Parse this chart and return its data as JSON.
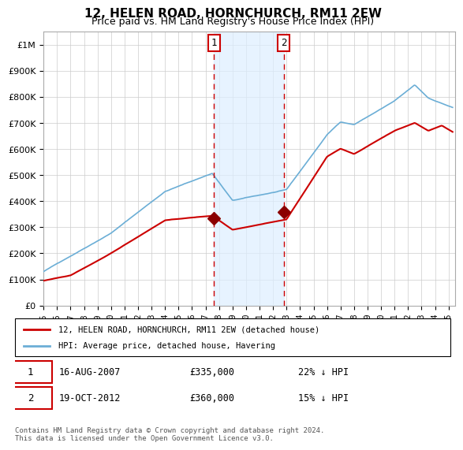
{
  "title": "12, HELEN ROAD, HORNCHURCH, RM11 2EW",
  "subtitle": "Price paid vs. HM Land Registry's House Price Index (HPI)",
  "legend_line1": "12, HELEN ROAD, HORNCHURCH, RM11 2EW (detached house)",
  "legend_line2": "HPI: Average price, detached house, Havering",
  "annotation1_label": "1",
  "annotation1_date": "16-AUG-2007",
  "annotation1_price": "£335,000",
  "annotation1_hpi": "22% ↓ HPI",
  "annotation1_year": 2007.625,
  "annotation1_value": 335000,
  "annotation2_label": "2",
  "annotation2_date": "19-OCT-2012",
  "annotation2_price": "£360,000",
  "annotation2_hpi": "15% ↓ HPI",
  "annotation2_year": 2012.8,
  "annotation2_value": 360000,
  "hpi_color": "#6baed6",
  "price_color": "#cc0000",
  "marker_color": "#8b0000",
  "vline_color": "#cc0000",
  "shade_color": "#ddeeff",
  "footnote": "Contains HM Land Registry data © Crown copyright and database right 2024.\nThis data is licensed under the Open Government Licence v3.0.",
  "ylim": [
    0,
    1050000
  ],
  "yticks": [
    0,
    100000,
    200000,
    300000,
    400000,
    500000,
    600000,
    700000,
    800000,
    900000,
    1000000
  ],
  "ytick_labels": [
    "£0",
    "£100K",
    "£200K",
    "£300K",
    "£400K",
    "£500K",
    "£600K",
    "£700K",
    "£800K",
    "£900K",
    "£1M"
  ],
  "xlim_start": 1995.0,
  "xlim_end": 2025.5,
  "xtick_years": [
    1995,
    1996,
    1997,
    1998,
    1999,
    2000,
    2001,
    2002,
    2003,
    2004,
    2005,
    2006,
    2007,
    2008,
    2009,
    2010,
    2011,
    2012,
    2013,
    2014,
    2015,
    2016,
    2017,
    2018,
    2019,
    2020,
    2021,
    2022,
    2023,
    2024,
    2025
  ]
}
